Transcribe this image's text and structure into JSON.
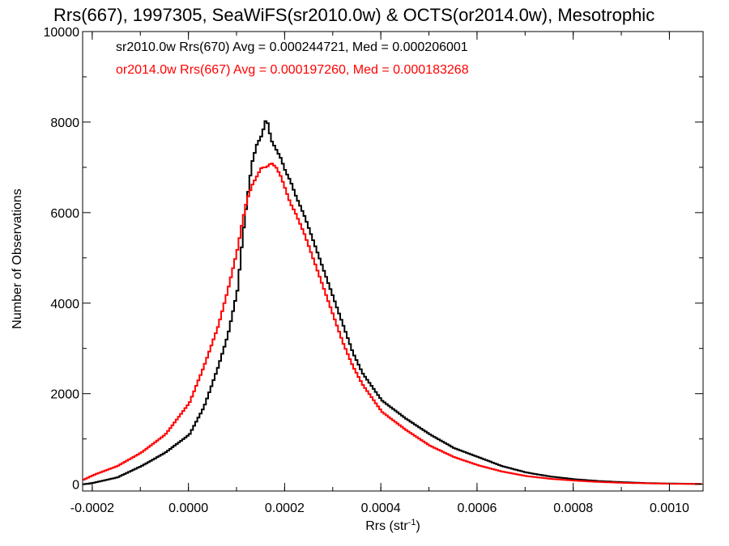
{
  "chart_data": {
    "type": "line",
    "style": "step",
    "title": "Rrs(667), 1997305, SeaWiFS(sr2010.0w) & OCTS(or2014.0w), Mesotrophic",
    "xlabel_main": "Rrs (str",
    "xlabel_sup": "-1",
    "xlabel_end": ")",
    "ylabel": "Number of Observations",
    "xlim": [
      -0.00022,
      0.00107
    ],
    "ylim": [
      -150,
      10000
    ],
    "x_ticks": [
      {
        "value": -0.0002,
        "label": "-0.0002"
      },
      {
        "value": 0.0,
        "label": "0.0000"
      },
      {
        "value": 0.0002,
        "label": "0.0002"
      },
      {
        "value": 0.0004,
        "label": "0.0004"
      },
      {
        "value": 0.0006,
        "label": "0.0006"
      },
      {
        "value": 0.0008,
        "label": "0.0008"
      },
      {
        "value": 0.001,
        "label": "0.0010"
      }
    ],
    "y_ticks": [
      {
        "value": 0,
        "label": "0"
      },
      {
        "value": 2000,
        "label": "2000"
      },
      {
        "value": 4000,
        "label": "4000"
      },
      {
        "value": 6000,
        "label": "6000"
      },
      {
        "value": 8000,
        "label": "8000"
      },
      {
        "value": 10000,
        "label": "10000"
      }
    ],
    "grid": false,
    "legend_position": "top-left",
    "series": [
      {
        "label": "sr2010.0w Rrs(670) Avg = 0.000244721, Med = 0.000206001",
        "color": "#000000",
        "x": [
          -0.00022,
          -0.0002,
          -0.00015,
          -0.0001,
          -5e-05,
          0.0,
          3e-05,
          6e-05,
          8e-05,
          0.0001,
          0.00011,
          0.00012,
          0.00013,
          0.00014,
          0.00015,
          0.00016,
          0.00017,
          0.00018,
          0.00019,
          0.0002,
          0.00021,
          0.00022,
          0.00024,
          0.00026,
          0.00028,
          0.0003,
          0.00032,
          0.00034,
          0.00036,
          0.00038,
          0.0004,
          0.00045,
          0.0005,
          0.00055,
          0.0006,
          0.00065,
          0.0007,
          0.00075,
          0.0008,
          0.00085,
          0.0009,
          0.00095,
          0.001,
          0.00107
        ],
        "y": [
          0,
          30,
          150,
          400,
          700,
          1100,
          1700,
          2600,
          3300,
          4300,
          5400,
          6300,
          7100,
          7500,
          7700,
          8100,
          7600,
          7400,
          7200,
          6900,
          6700,
          6400,
          5900,
          5300,
          4700,
          4100,
          3500,
          2900,
          2450,
          2150,
          1850,
          1450,
          1100,
          800,
          600,
          400,
          260,
          170,
          110,
          70,
          45,
          25,
          15,
          5
        ]
      },
      {
        "label": "or2014.0w Rrs(667) Avg = 0.000197260, Med = 0.000183268",
        "color": "#ff0000",
        "x": [
          -0.00022,
          -0.0002,
          -0.00015,
          -0.0001,
          -5e-05,
          0.0,
          3e-05,
          6e-05,
          8e-05,
          0.0001,
          0.00011,
          0.00012,
          0.00013,
          0.00014,
          0.00015,
          0.00016,
          0.00017,
          0.00018,
          0.00019,
          0.0002,
          0.00021,
          0.00022,
          0.00024,
          0.00026,
          0.00028,
          0.0003,
          0.00032,
          0.00034,
          0.00036,
          0.00038,
          0.0004,
          0.00045,
          0.0005,
          0.00055,
          0.0006,
          0.00065,
          0.0007,
          0.00075,
          0.0008,
          0.00085,
          0.0009,
          0.00095,
          0.001,
          0.00107
        ],
        "y": [
          100,
          200,
          400,
          700,
          1100,
          1800,
          2600,
          3500,
          4300,
          5200,
          5800,
          6300,
          6600,
          6800,
          7000,
          7000,
          7100,
          7000,
          6800,
          6500,
          6200,
          6000,
          5500,
          4900,
          4300,
          3700,
          3100,
          2600,
          2200,
          1900,
          1600,
          1200,
          850,
          600,
          420,
          280,
          180,
          120,
          80,
          50,
          30,
          20,
          10,
          5
        ]
      }
    ]
  }
}
